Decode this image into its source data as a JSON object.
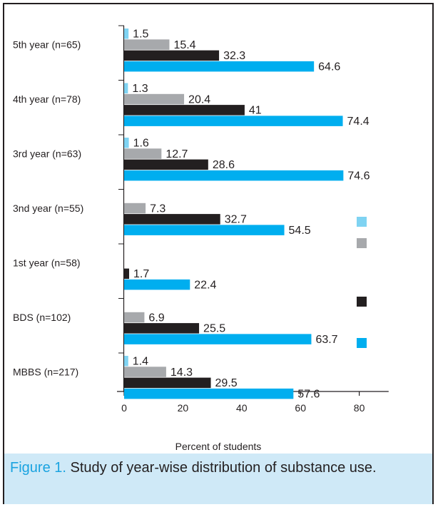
{
  "chart_data": {
    "type": "bar",
    "orientation": "horizontal",
    "xlabel": "Percent of students",
    "xlim": [
      0,
      90
    ],
    "xticks": [
      0,
      20,
      40,
      60,
      80
    ],
    "categories": [
      "5th year (n=65)",
      "4th year (n=78)",
      "3rd year (n=63)",
      "3nd year (n=55)",
      "1st year (n=58)",
      "BDS (n=102)",
      "MBBS (n=217)"
    ],
    "series": [
      {
        "color": "#7fd3f2",
        "values": [
          1.5,
          1.3,
          1.6,
          null,
          null,
          null,
          1.4
        ],
        "labels": [
          "1.5",
          "1.3",
          "1.6",
          "",
          "",
          "",
          "1.4"
        ]
      },
      {
        "color": "#a7a9ac",
        "values": [
          15.4,
          20.4,
          12.7,
          7.3,
          null,
          6.9,
          14.3
        ],
        "labels": [
          "15.4",
          "20.4",
          "12.7",
          "7.3",
          "",
          "6.9",
          "14.3"
        ]
      },
      {
        "color": "#231f20",
        "values": [
          32.3,
          41,
          28.6,
          32.7,
          1.7,
          25.5,
          29.5
        ],
        "labels": [
          "32.3",
          "41",
          "28.6",
          "32.7",
          "1.7",
          "25.5",
          "29.5"
        ]
      },
      {
        "color": "#00aeef",
        "values": [
          64.6,
          74.4,
          74.6,
          54.5,
          22.4,
          63.7,
          57.6
        ],
        "labels": [
          "64.6",
          "74.4",
          "74.6",
          "54.5",
          "22.4",
          "63.7",
          "57.6"
        ]
      }
    ],
    "legend": "right",
    "grid": false
  },
  "caption": {
    "label": "Figure 1.",
    "text": " Study of year-wise distribution of substance use."
  }
}
